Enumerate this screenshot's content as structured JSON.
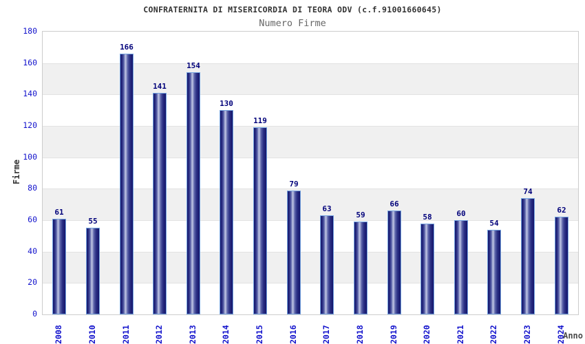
{
  "chart_data": {
    "type": "bar",
    "title": "CONFRATERNITA DI MISERICORDIA DI TEORA ODV (c.f.91001660645)",
    "subtitle": "Numero Firme",
    "xlabel": "Anno",
    "ylabel": "Firme",
    "categories": [
      "2008",
      "2010",
      "2011",
      "2012",
      "2013",
      "2014",
      "2015",
      "2016",
      "2017",
      "2018",
      "2019",
      "2020",
      "2021",
      "2022",
      "2023",
      "2024"
    ],
    "values": [
      61,
      55,
      166,
      141,
      154,
      130,
      119,
      79,
      63,
      59,
      66,
      58,
      60,
      54,
      74,
      62
    ],
    "ylim": [
      0,
      180
    ],
    "ytick_step": 20,
    "yticks": [
      0,
      20,
      40,
      60,
      80,
      100,
      120,
      140,
      160,
      180
    ],
    "legend": "none",
    "grid": "alternating gray horizontal bands every 20 units",
    "gray_band_ranges": [
      [
        20,
        40
      ],
      [
        60,
        80
      ],
      [
        100,
        120
      ],
      [
        140,
        160
      ]
    ],
    "bar_value_labels_shown": true,
    "colors": {
      "bar_edge_dark": "#14156a",
      "bar_mid": "#2a2f84",
      "bar_highlight": "#c3c9e6",
      "bar_border": "#74a3e0",
      "tick_label_blue": "#1212cc",
      "value_label_navy": "#00007a",
      "band_gray": "#f0f0f0",
      "grid_line_gray": "#e2e2e2",
      "plot_border_gray": "#cccccc",
      "title_color": "#333333",
      "subtitle_color": "#666666",
      "axis_title_color": "#4a4a4a",
      "background": "#ffffff"
    }
  }
}
